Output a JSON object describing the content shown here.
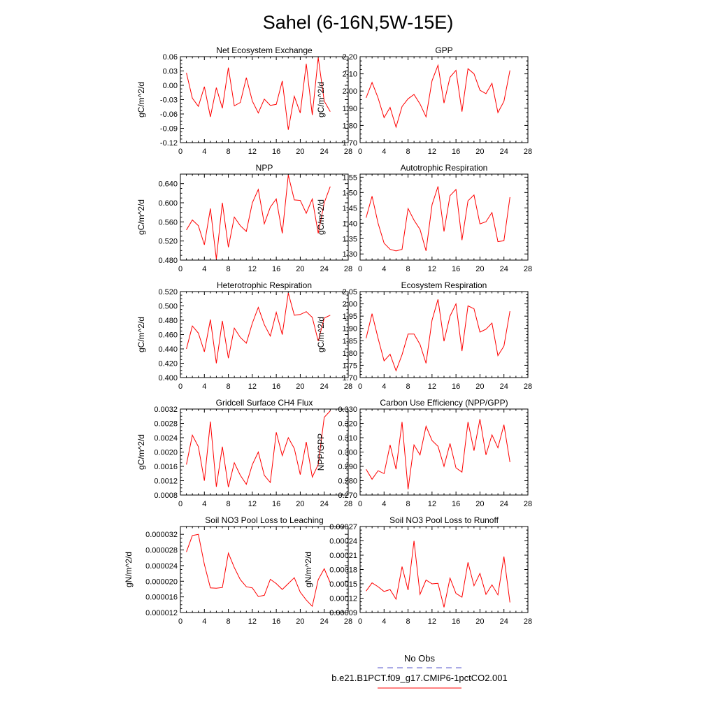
{
  "figure": {
    "title": "Sahel (6-16N,5W-15E)",
    "legend": {
      "entries": [
        {
          "label": "No Obs",
          "color": "#5555cc",
          "style": "dashed"
        },
        {
          "label": "b.e21.B1PCT.f09_g17.CMIP6-1pctCO2.001",
          "color": "#ff0000",
          "style": "solid"
        }
      ]
    }
  },
  "chart_data": [
    {
      "type": "line",
      "title": "Net Ecosystem Exchange",
      "ylabel": "gC/m^2/d",
      "xlim": [
        0,
        28
      ],
      "xticks": [
        0,
        4,
        8,
        12,
        16,
        20,
        24,
        28
      ],
      "ylim": [
        -0.12,
        0.06
      ],
      "yticks": [
        "-0.12",
        "-0.09",
        "-0.06",
        "-0.03",
        "0.00",
        "0.03",
        "0.06"
      ],
      "series": [
        {
          "color": "#ff0000",
          "x": [
            1,
            2,
            3,
            4,
            5,
            6,
            7,
            8,
            9,
            10,
            11,
            12,
            13,
            14,
            15,
            16,
            17,
            18,
            19,
            20,
            21,
            22,
            23,
            24,
            25
          ],
          "y": [
            0.026,
            -0.027,
            -0.044,
            -0.003,
            -0.066,
            -0.005,
            -0.048,
            0.037,
            -0.043,
            -0.036,
            0.016,
            -0.033,
            -0.058,
            -0.029,
            -0.042,
            -0.04,
            0.009,
            -0.093,
            -0.023,
            -0.058,
            0.045,
            -0.062,
            0.058,
            -0.033,
            -0.055
          ]
        }
      ]
    },
    {
      "type": "line",
      "title": "GPP",
      "ylabel": "gC/m^2/d",
      "xlim": [
        0,
        28
      ],
      "xticks": [
        0,
        4,
        8,
        12,
        16,
        20,
        24,
        28
      ],
      "ylim": [
        1.7,
        2.2
      ],
      "yticks": [
        "1.70",
        "1.80",
        "1.90",
        "2.00",
        "2.10",
        "2.20"
      ],
      "series": [
        {
          "color": "#ff0000",
          "x": [
            1,
            2,
            3,
            4,
            5,
            6,
            7,
            8,
            9,
            10,
            11,
            12,
            13,
            14,
            15,
            16,
            17,
            18,
            19,
            20,
            21,
            22,
            23,
            24,
            25
          ],
          "y": [
            1.96,
            2.05,
            1.96,
            1.845,
            1.905,
            1.79,
            1.91,
            1.955,
            1.98,
            1.925,
            1.85,
            2.06,
            2.15,
            1.93,
            2.08,
            2.12,
            1.88,
            2.13,
            2.1,
            2.005,
            1.985,
            2.045,
            1.875,
            1.94,
            2.12
          ]
        }
      ]
    },
    {
      "type": "line",
      "title": "NPP",
      "ylabel": "gC/m^2/d",
      "xlim": [
        0,
        28
      ],
      "xticks": [
        0,
        4,
        8,
        12,
        16,
        20,
        24,
        28
      ],
      "ylim": [
        0.48,
        0.66
      ],
      "yticks": [
        "0.480",
        "0.520",
        "0.560",
        "0.600",
        "0.640"
      ],
      "series": [
        {
          "color": "#ff0000",
          "x": [
            1,
            2,
            3,
            4,
            5,
            6,
            7,
            8,
            9,
            10,
            11,
            12,
            13,
            14,
            15,
            16,
            17,
            18,
            19,
            20,
            21,
            22,
            23,
            24,
            25
          ],
          "y": [
            0.543,
            0.564,
            0.552,
            0.512,
            0.588,
            0.482,
            0.6,
            0.507,
            0.57,
            0.552,
            0.54,
            0.6,
            0.628,
            0.556,
            0.591,
            0.608,
            0.536,
            0.658,
            0.606,
            0.605,
            0.578,
            0.608,
            0.536,
            0.6,
            0.634
          ]
        }
      ]
    },
    {
      "type": "line",
      "title": "Autotrophic Respiration",
      "ylabel": "gC/m^2/d",
      "xlim": [
        0,
        28
      ],
      "xticks": [
        0,
        4,
        8,
        12,
        16,
        20,
        24,
        28
      ],
      "ylim": [
        1.28,
        1.56
      ],
      "yticks": [
        "1.30",
        "1.35",
        "1.40",
        "1.45",
        "1.50",
        "1.55"
      ],
      "series": [
        {
          "color": "#ff0000",
          "x": [
            1,
            2,
            3,
            4,
            5,
            6,
            7,
            8,
            9,
            10,
            11,
            12,
            13,
            14,
            15,
            16,
            17,
            18,
            19,
            20,
            21,
            22,
            23,
            24,
            25
          ],
          "y": [
            1.418,
            1.488,
            1.4,
            1.335,
            1.315,
            1.31,
            1.315,
            1.448,
            1.41,
            1.38,
            1.31,
            1.46,
            1.52,
            1.373,
            1.49,
            1.51,
            1.345,
            1.473,
            1.492,
            1.398,
            1.405,
            1.435,
            1.34,
            1.343,
            1.485
          ]
        }
      ]
    },
    {
      "type": "line",
      "title": "Heterotrophic Respiration",
      "ylabel": "gC/m^2/d",
      "xlim": [
        0,
        28
      ],
      "xticks": [
        0,
        4,
        8,
        12,
        16,
        20,
        24,
        28
      ],
      "ylim": [
        0.4,
        0.52
      ],
      "yticks": [
        "0.400",
        "0.420",
        "0.440",
        "0.460",
        "0.480",
        "0.500",
        "0.520"
      ],
      "series": [
        {
          "color": "#ff0000",
          "x": [
            1,
            2,
            3,
            4,
            5,
            6,
            7,
            8,
            9,
            10,
            11,
            12,
            13,
            14,
            15,
            16,
            17,
            18,
            19,
            20,
            21,
            22,
            23,
            24,
            25
          ],
          "y": [
            0.44,
            0.472,
            0.462,
            0.436,
            0.481,
            0.42,
            0.479,
            0.427,
            0.469,
            0.456,
            0.448,
            0.476,
            0.498,
            0.474,
            0.458,
            0.491,
            0.46,
            0.518,
            0.487,
            0.488,
            0.492,
            0.484,
            0.451,
            0.483,
            0.487
          ]
        }
      ]
    },
    {
      "type": "line",
      "title": "Ecosystem Respiration",
      "ylabel": "gC/m^2/d",
      "xlim": [
        0,
        28
      ],
      "xticks": [
        0,
        4,
        8,
        12,
        16,
        20,
        24,
        28
      ],
      "ylim": [
        1.7,
        2.05
      ],
      "yticks": [
        "1.70",
        "1.75",
        "1.80",
        "1.85",
        "1.90",
        "1.95",
        "2.00",
        "2.05"
      ],
      "series": [
        {
          "color": "#ff0000",
          "x": [
            1,
            2,
            3,
            4,
            5,
            6,
            7,
            8,
            9,
            10,
            11,
            12,
            13,
            14,
            15,
            16,
            17,
            18,
            19,
            20,
            21,
            22,
            23,
            24,
            25
          ],
          "y": [
            1.86,
            1.96,
            1.86,
            1.768,
            1.795,
            1.728,
            1.793,
            1.877,
            1.877,
            1.835,
            1.758,
            1.934,
            2.018,
            1.848,
            1.95,
            2.0,
            1.808,
            1.992,
            1.98,
            1.885,
            1.897,
            1.922,
            1.789,
            1.828,
            1.97
          ]
        }
      ]
    },
    {
      "type": "line",
      "title": "Gridcell Surface CH4 Flux",
      "ylabel": "gC/m^2/d",
      "xlim": [
        0,
        28
      ],
      "xticks": [
        0,
        4,
        8,
        12,
        16,
        20,
        24,
        28
      ],
      "ylim": [
        0.0008,
        0.0032
      ],
      "yticks": [
        "0.0008",
        "0.0012",
        "0.0016",
        "0.0020",
        "0.0024",
        "0.0028",
        "0.0032"
      ],
      "series": [
        {
          "color": "#ff0000",
          "x": [
            1,
            2,
            3,
            4,
            5,
            6,
            7,
            8,
            9,
            10,
            11,
            12,
            13,
            14,
            15,
            16,
            17,
            18,
            19,
            20,
            21,
            22,
            23,
            24,
            25
          ],
          "y": [
            0.00165,
            0.00247,
            0.00215,
            0.0012,
            0.00285,
            0.00103,
            0.00215,
            0.00102,
            0.0017,
            0.00135,
            0.0011,
            0.00165,
            0.002,
            0.00135,
            0.00115,
            0.00255,
            0.0019,
            0.0024,
            0.0021,
            0.00137,
            0.00228,
            0.0013,
            0.00165,
            0.00297,
            0.00315
          ]
        }
      ]
    },
    {
      "type": "line",
      "title": "Carbon Use Efficiency (NPP/GPP)",
      "ylabel": "NPP/GPP",
      "xlim": [
        0,
        28
      ],
      "xticks": [
        0,
        4,
        8,
        12,
        16,
        20,
        24,
        28
      ],
      "ylim": [
        0.27,
        0.33
      ],
      "yticks": [
        "0.270",
        "0.280",
        "0.290",
        "0.300",
        "0.310",
        "0.320",
        "0.330"
      ],
      "series": [
        {
          "color": "#ff0000",
          "x": [
            1,
            2,
            3,
            4,
            5,
            6,
            7,
            8,
            9,
            10,
            11,
            12,
            13,
            14,
            15,
            16,
            17,
            18,
            19,
            20,
            21,
            22,
            23,
            24,
            25
          ],
          "y": [
            0.288,
            0.281,
            0.287,
            0.285,
            0.305,
            0.288,
            0.321,
            0.274,
            0.305,
            0.298,
            0.318,
            0.308,
            0.304,
            0.29,
            0.306,
            0.289,
            0.286,
            0.321,
            0.301,
            0.323,
            0.298,
            0.312,
            0.303,
            0.319,
            0.293
          ]
        }
      ]
    },
    {
      "type": "line",
      "title": "Soil NO3 Pool Loss to Leaching",
      "ylabel": "gN/m^2/d",
      "xlim": [
        0,
        28
      ],
      "xticks": [
        0,
        4,
        8,
        12,
        16,
        20,
        24,
        28
      ],
      "ylim": [
        1.2e-05,
        3.4e-05
      ],
      "yticks": [
        "0.000012",
        "0.000016",
        "0.000020",
        "0.000024",
        "0.000028",
        "0.000032"
      ],
      "series": [
        {
          "color": "#ff0000",
          "x": [
            1,
            2,
            3,
            4,
            5,
            6,
            7,
            8,
            9,
            10,
            11,
            12,
            13,
            14,
            15,
            16,
            17,
            18,
            19,
            20,
            21,
            22,
            23,
            24,
            25
          ],
          "y": [
            2.75e-05,
            3.17e-05,
            3.2e-05,
            2.43e-05,
            1.83e-05,
            1.82e-05,
            1.84e-05,
            2.72e-05,
            2.35e-05,
            2.04e-05,
            1.86e-05,
            1.83e-05,
            1.61e-05,
            1.64e-05,
            2.05e-05,
            1.94e-05,
            1.79e-05,
            1.94e-05,
            2.09e-05,
            1.72e-05,
            1.52e-05,
            1.36e-05,
            2.04e-05,
            2.32e-05,
            1.96e-05
          ]
        }
      ]
    },
    {
      "type": "line",
      "title": "Soil NO3 Pool Loss to Runoff",
      "ylabel": "gN/m^2/d",
      "xlim": [
        0,
        28
      ],
      "xticks": [
        0,
        4,
        8,
        12,
        16,
        20,
        24,
        28
      ],
      "ylim": [
        9e-05,
        0.00027
      ],
      "yticks": [
        "0.00009",
        "0.00012",
        "0.00015",
        "0.00018",
        "0.00021",
        "0.00024",
        "0.00027"
      ],
      "series": [
        {
          "color": "#ff0000",
          "x": [
            1,
            2,
            3,
            4,
            5,
            6,
            7,
            8,
            9,
            10,
            11,
            12,
            13,
            14,
            15,
            16,
            17,
            18,
            19,
            20,
            21,
            22,
            23,
            24,
            25
          ],
          "y": [
            0.000135,
            0.000152,
            0.000144,
            0.000134,
            0.000138,
            0.000118,
            0.000186,
            0.000137,
            0.00024,
            0.000128,
            0.000158,
            0.00015,
            0.000151,
            0.000101,
            0.000162,
            0.00013,
            0.000122,
            0.000195,
            0.000146,
            0.000172,
            0.000128,
            0.000148,
            0.000127,
            0.000207,
            0.000111
          ]
        }
      ]
    }
  ]
}
